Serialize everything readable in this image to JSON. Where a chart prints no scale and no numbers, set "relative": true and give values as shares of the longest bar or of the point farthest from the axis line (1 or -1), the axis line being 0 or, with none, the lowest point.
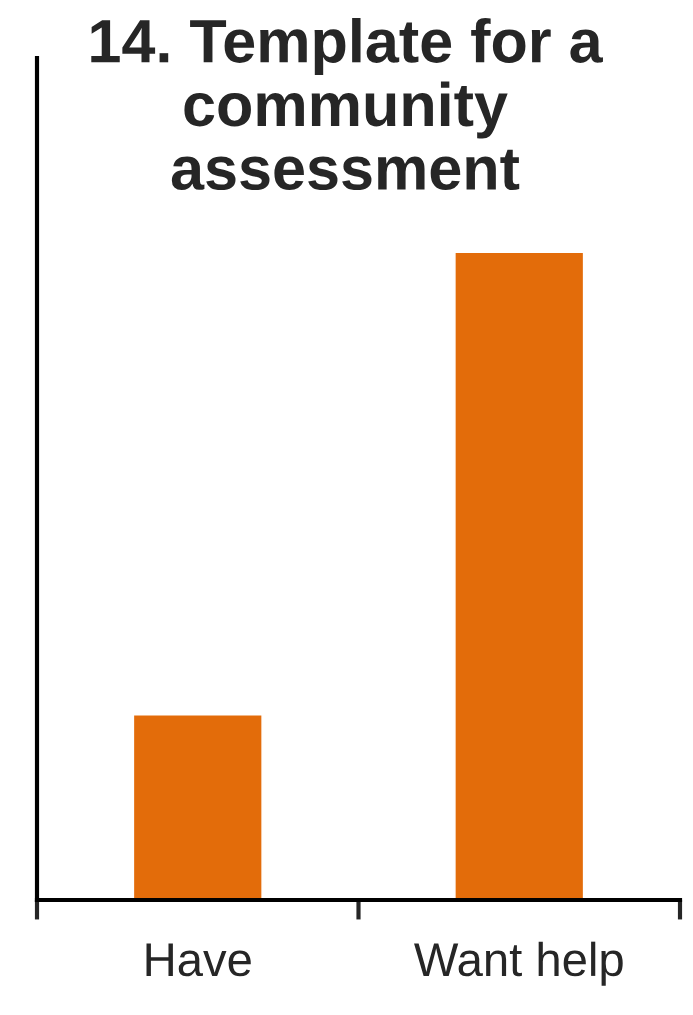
{
  "chart_data": {
    "type": "bar",
    "title": "14. Template for a community assessment",
    "categories": [
      "Have",
      "Want help"
    ],
    "values": [
      0.286,
      1
    ],
    "color": "#e36c0a",
    "relative": true
  }
}
